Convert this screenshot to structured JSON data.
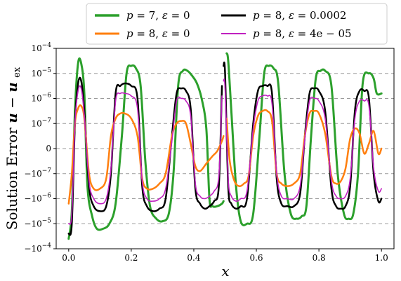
{
  "chart_data": {
    "type": "line",
    "xlabel": "x",
    "ylabel": "Solution Error u − u_ex",
    "ylabel_parts": {
      "prefix": "Solution Error ",
      "u": "u",
      "minus": " − ",
      "uex_base": "u",
      "uex_sub": "ex"
    },
    "xlim": [
      -0.04,
      1.04
    ],
    "ylim": [
      -4,
      4
    ],
    "y_scale": "symlog",
    "x_ticks": [
      0.0,
      0.2,
      0.4,
      0.6,
      0.8,
      1.0
    ],
    "x_tick_labels": [
      "0.0",
      "0.2",
      "0.4",
      "0.6",
      "0.8",
      "1.0"
    ],
    "y_ticks": [
      {
        "value": 4,
        "base": "10",
        "exp": "−4"
      },
      {
        "value": 3,
        "base": "10",
        "exp": "−5"
      },
      {
        "value": 2,
        "base": "10",
        "exp": "−6"
      },
      {
        "value": 1,
        "base": "10",
        "exp": "−7"
      },
      {
        "value": 0,
        "base": "0",
        "exp": ""
      },
      {
        "value": -1,
        "base": "−10",
        "exp": "−7"
      },
      {
        "value": -2,
        "base": "−10",
        "exp": "−6"
      },
      {
        "value": -3,
        "base": "−10",
        "exp": "−5"
      },
      {
        "value": -4,
        "base": "−10",
        "exp": "−4"
      }
    ],
    "grid": "horizontal-dashed",
    "legend_placement": "top-center",
    "series": [
      {
        "name": "p = 7, ε = 0",
        "legend": {
          "p": "7",
          "eps": "0"
        },
        "color": "#2ca02c",
        "width": 3,
        "x": [
          0.0,
          0.01,
          0.02,
          0.03,
          0.04,
          0.05,
          0.06,
          0.075,
          0.09,
          0.11,
          0.13,
          0.15,
          0.17,
          0.185,
          0.2,
          0.215,
          0.23,
          0.245,
          0.26,
          0.28,
          0.3,
          0.32,
          0.335,
          0.35,
          0.365,
          0.38,
          0.395,
          0.41,
          0.425,
          0.44,
          0.45,
          0.46,
          0.475,
          0.49,
          0.495
        ],
        "y": [
          -3.6,
          -2.5,
          1.5,
          3.4,
          3.4,
          2.2,
          -1.5,
          -2.7,
          -3.2,
          -3.2,
          -3.0,
          -2.2,
          0.5,
          3.0,
          3.3,
          3.2,
          2.5,
          -0.5,
          -2.3,
          -2.8,
          -2.9,
          -2.6,
          -1.0,
          2.5,
          3.1,
          3.1,
          2.9,
          2.6,
          2.0,
          0.8,
          -2.0,
          -2.3,
          -2.3,
          -2.2,
          -2.1
        ]
      },
      {
        "name": "p = 7, ε = 0",
        "color": "#2ca02c",
        "width": 3,
        "x": [
          0.505,
          0.51,
          0.52,
          0.535,
          0.55,
          0.57,
          0.59,
          0.61,
          0.625,
          0.64,
          0.655,
          0.67,
          0.69,
          0.71,
          0.73,
          0.745,
          0.76,
          0.775,
          0.79,
          0.805,
          0.82,
          0.84,
          0.86,
          0.88,
          0.895,
          0.91,
          0.925,
          0.94,
          0.96,
          0.975,
          0.985,
          1.0
        ],
        "y": [
          3.8,
          3.5,
          1.5,
          -1.5,
          -2.9,
          -3.0,
          -2.6,
          0.5,
          3.0,
          3.3,
          3.2,
          2.6,
          -1.0,
          -2.6,
          -2.8,
          -2.7,
          -2.3,
          0.5,
          2.8,
          3.1,
          3.1,
          2.5,
          -1.0,
          -2.6,
          -2.8,
          -2.6,
          -1.0,
          2.6,
          3.0,
          2.8,
          2.2,
          2.2
        ]
      },
      {
        "name": "p = 8, ε = 0",
        "legend": {
          "p": "8",
          "eps": "0"
        },
        "color": "#ff7f0e",
        "width": 2.5,
        "x": [
          0.0,
          0.01,
          0.02,
          0.03,
          0.04,
          0.05,
          0.065,
          0.08,
          0.1,
          0.12,
          0.135,
          0.15,
          0.165,
          0.18,
          0.2,
          0.22,
          0.235,
          0.25,
          0.27,
          0.29,
          0.31,
          0.33,
          0.345,
          0.36,
          0.375,
          0.39,
          0.405,
          0.42,
          0.44,
          0.46,
          0.475,
          0.49,
          0.495
        ],
        "y": [
          -2.2,
          -1.0,
          1.0,
          1.6,
          1.7,
          1.2,
          -1.0,
          -1.6,
          -1.6,
          -1.2,
          0.5,
          1.2,
          1.4,
          1.4,
          1.2,
          0.5,
          -1.2,
          -1.6,
          -1.6,
          -1.4,
          -1.0,
          0.5,
          1.0,
          1.1,
          1.0,
          0.2,
          -0.7,
          -0.9,
          -0.6,
          -0.3,
          -0.1,
          0.3,
          0.5
        ]
      },
      {
        "name": "p = 8, ε = 0",
        "color": "#ff7f0e",
        "width": 2.5,
        "x": [
          0.505,
          0.515,
          0.53,
          0.545,
          0.56,
          0.575,
          0.59,
          0.605,
          0.62,
          0.635,
          0.65,
          0.665,
          0.68,
          0.7,
          0.72,
          0.74,
          0.755,
          0.77,
          0.785,
          0.8,
          0.82,
          0.84,
          0.855,
          0.87,
          0.885,
          0.9,
          0.915,
          0.93,
          0.945,
          0.96,
          0.975,
          0.99,
          1.0
        ],
        "y": [
          1.2,
          -0.5,
          -1.3,
          -1.5,
          -1.4,
          -1.1,
          0.5,
          1.3,
          1.5,
          1.5,
          1.1,
          -1.0,
          -1.4,
          -1.5,
          -1.4,
          -1.0,
          0.5,
          1.4,
          1.5,
          1.4,
          0.6,
          -1.1,
          -1.4,
          -1.3,
          -0.8,
          0.4,
          0.8,
          0.6,
          -0.2,
          0.2,
          0.7,
          -0.2,
          0.0
        ]
      },
      {
        "name": "p = 8, ε = 0.0002",
        "legend": {
          "p": "8",
          "eps": "0.0002"
        },
        "color": "#000000",
        "width": 2.5,
        "x": [
          0.0,
          0.01,
          0.02,
          0.03,
          0.04,
          0.05,
          0.065,
          0.08,
          0.1,
          0.12,
          0.135,
          0.15,
          0.165,
          0.18,
          0.2,
          0.22,
          0.235,
          0.25,
          0.27,
          0.29,
          0.31,
          0.33,
          0.345,
          0.36,
          0.375,
          0.39,
          0.405,
          0.42,
          0.435,
          0.45,
          0.465,
          0.48,
          0.49
        ],
        "y": [
          -3.4,
          -3.0,
          1.0,
          2.6,
          2.7,
          1.5,
          -1.5,
          -2.3,
          -2.5,
          -2.3,
          -1.0,
          2.2,
          2.5,
          2.6,
          2.5,
          2.0,
          -1.5,
          -2.3,
          -2.5,
          -2.4,
          -2.0,
          0.5,
          2.2,
          2.4,
          2.3,
          1.6,
          -1.6,
          -2.2,
          -2.4,
          -2.3,
          -2.1,
          -1.5,
          2.5
        ]
      },
      {
        "name": "p = 8, ε = 0.0002",
        "color": "#000000",
        "width": 2.5,
        "x": [
          0.495,
          0.5,
          0.51,
          0.52,
          0.535,
          0.55,
          0.57,
          0.59,
          0.605,
          0.62,
          0.635,
          0.65,
          0.665,
          0.68,
          0.7,
          0.72,
          0.74,
          0.755,
          0.77,
          0.785,
          0.8,
          0.82,
          0.84,
          0.855,
          0.87,
          0.885,
          0.9,
          0.915,
          0.93,
          0.945,
          0.96,
          0.975,
          0.99,
          1.0
        ],
        "y": [
          3.3,
          3.0,
          -1.5,
          -2.2,
          -2.4,
          -2.3,
          -2.0,
          1.0,
          2.3,
          2.5,
          2.5,
          2.2,
          -1.2,
          -2.2,
          -2.3,
          -2.3,
          -1.8,
          0.5,
          2.2,
          2.4,
          2.3,
          1.5,
          -1.6,
          -2.3,
          -2.4,
          -2.3,
          -1.5,
          1.5,
          2.3,
          2.3,
          2.0,
          -1.0,
          -2.1,
          -2.0
        ]
      },
      {
        "name": "p = 8, ε = 4e − 05",
        "legend": {
          "p": "8",
          "eps": "4e − 05"
        },
        "color": "#c020c0",
        "width": 1.6,
        "x": [
          0.0,
          0.01,
          0.02,
          0.03,
          0.04,
          0.05,
          0.065,
          0.08,
          0.1,
          0.12,
          0.135,
          0.15,
          0.165,
          0.18,
          0.2,
          0.22,
          0.235,
          0.25,
          0.27,
          0.29,
          0.31,
          0.33,
          0.345,
          0.36,
          0.375,
          0.39,
          0.405,
          0.42,
          0.435,
          0.45,
          0.465,
          0.48,
          0.49
        ],
        "y": [
          -3.0,
          -2.6,
          1.0,
          2.3,
          2.4,
          1.3,
          -1.3,
          -2.0,
          -2.2,
          -2.0,
          -0.8,
          1.9,
          2.2,
          2.2,
          2.1,
          1.6,
          -1.3,
          -2.0,
          -2.1,
          -2.0,
          -1.6,
          0.3,
          1.9,
          2.0,
          1.9,
          1.3,
          -1.4,
          -1.9,
          -2.0,
          -1.9,
          -1.7,
          -1.1,
          2.1
        ]
      },
      {
        "name": "p = 8, ε = 4e − 05",
        "color": "#c020c0",
        "width": 1.6,
        "x": [
          0.495,
          0.5,
          0.51,
          0.52,
          0.535,
          0.55,
          0.57,
          0.59,
          0.605,
          0.62,
          0.635,
          0.65,
          0.665,
          0.68,
          0.7,
          0.72,
          0.74,
          0.755,
          0.77,
          0.785,
          0.8,
          0.82,
          0.84,
          0.855,
          0.87,
          0.885,
          0.9,
          0.915,
          0.93,
          0.945,
          0.96,
          0.975,
          0.99,
          1.0
        ],
        "y": [
          2.7,
          2.4,
          -1.2,
          -1.9,
          -2.1,
          -2.0,
          -1.7,
          0.8,
          1.9,
          2.1,
          2.1,
          1.8,
          -1.0,
          -1.9,
          -2.0,
          -2.0,
          -1.5,
          0.4,
          1.9,
          2.0,
          1.9,
          1.2,
          -1.3,
          -1.9,
          -2.0,
          -1.9,
          -1.2,
          1.2,
          1.9,
          1.9,
          1.7,
          -0.8,
          -1.7,
          -1.6
        ]
      }
    ]
  }
}
